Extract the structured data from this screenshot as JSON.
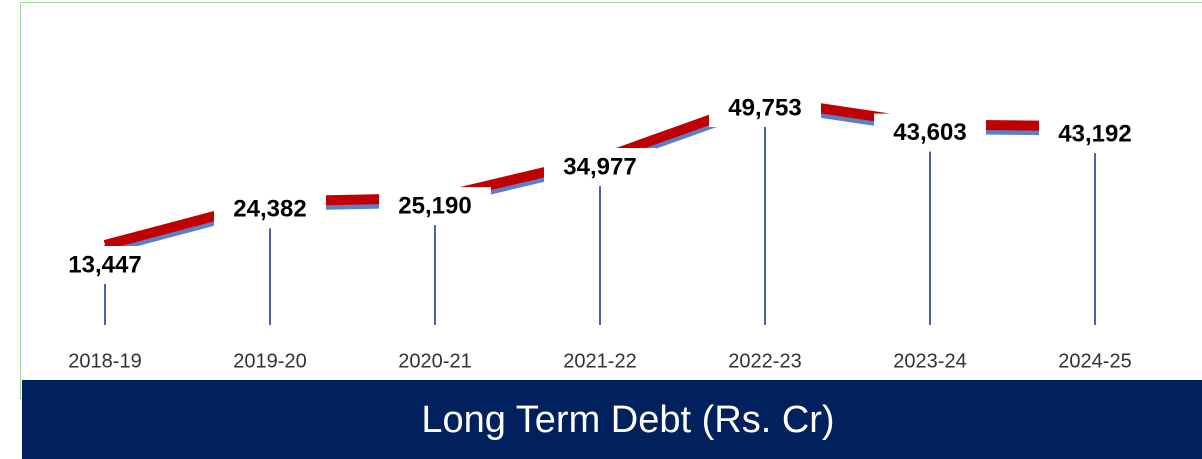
{
  "chart_data": {
    "type": "line",
    "title": "Long Term Debt (Rs. Cr)",
    "categories": [
      "2018-19",
      "2019-20",
      "2020-21",
      "2021-22",
      "2022-23",
      "2023-24",
      "2024-25"
    ],
    "values": [
      13447,
      24382,
      25190,
      34977,
      49753,
      43603,
      43192
    ],
    "value_labels": [
      "13,447",
      "24,382",
      "25,190",
      "34,977",
      "49,753",
      "43,603",
      "43,192"
    ],
    "color": "#c00000"
  }
}
